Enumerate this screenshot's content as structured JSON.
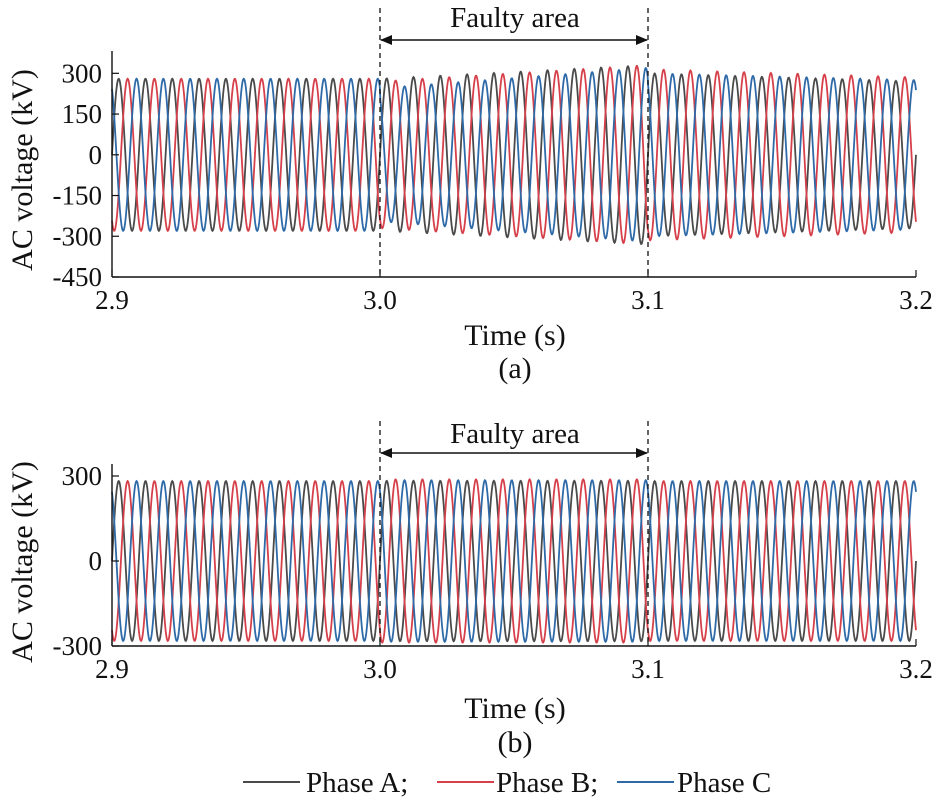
{
  "chart_data": [
    {
      "type": "line",
      "panel_label": "(a)",
      "xlabel": "Time (s)",
      "ylabel": "AC voltage (kV)",
      "xlim": [
        2.9,
        3.2
      ],
      "ylim": [
        -450,
        340
      ],
      "xticks": [
        2.9,
        3.0,
        3.1,
        3.2
      ],
      "xtick_labels": [
        "2.9",
        "3.0",
        "3.1",
        "3.2"
      ],
      "yticks": [
        300,
        150,
        0,
        -150,
        -300,
        -450
      ],
      "ytick_labels": [
        "300",
        "150",
        "0",
        "-150",
        "-300",
        "-450"
      ],
      "annotation": {
        "text": "Faulty area",
        "x_start": 3.0,
        "x_end": 3.1
      },
      "series": [
        {
          "name": "Phase A",
          "color": "#4a4a4a",
          "phase_deg": 0,
          "segments": [
            {
              "t0": 2.9,
              "t1": 3.0,
              "amplitude": 280
            },
            {
              "t0": 3.0,
              "t1": 3.1,
              "amplitude": [
                280,
                330
              ]
            },
            {
              "t0": 3.1,
              "t1": 3.2,
              "amplitude": [
                300,
                270
              ]
            }
          ]
        },
        {
          "name": "Phase B",
          "color": "#d6404a",
          "phase_deg": -120,
          "segments": [
            {
              "t0": 2.9,
              "t1": 3.0,
              "amplitude": 280
            },
            {
              "t0": 3.0,
              "t1": 3.1,
              "amplitude": [
                270,
                330
              ]
            },
            {
              "t0": 3.1,
              "t1": 3.2,
              "amplitude": [
                315,
                285
              ]
            }
          ]
        },
        {
          "name": "Phase C",
          "color": "#2f6aa8",
          "phase_deg": 120,
          "segments": [
            {
              "t0": 2.9,
              "t1": 3.0,
              "amplitude": 280
            },
            {
              "t0": 3.0,
              "t1": 3.1,
              "amplitude": [
                245,
                320
              ]
            },
            {
              "t0": 3.1,
              "t1": 3.2,
              "amplitude": [
                300,
                275
              ]
            }
          ]
        }
      ]
    },
    {
      "type": "line",
      "panel_label": "(b)",
      "xlabel": "Time (s)",
      "ylabel": "AC voltage (kV)",
      "xlim": [
        2.9,
        3.2
      ],
      "ylim": [
        -300,
        300
      ],
      "xticks": [
        2.9,
        3.0,
        3.1,
        3.2
      ],
      "xtick_labels": [
        "2.9",
        "3.0",
        "3.1",
        "3.2"
      ],
      "yticks": [
        300,
        0,
        -300
      ],
      "ytick_labels": [
        "300",
        "0",
        "-300"
      ],
      "annotation": {
        "text": "Faulty area",
        "x_start": 3.0,
        "x_end": 3.1
      },
      "series": [
        {
          "name": "Phase A",
          "color": "#4a4a4a",
          "phase_deg": 0,
          "segments": [
            {
              "t0": 2.9,
              "t1": 3.0,
              "amplitude": 282
            },
            {
              "t0": 3.0,
              "t1": 3.1,
              "amplitude": 283
            },
            {
              "t0": 3.1,
              "t1": 3.2,
              "amplitude": 282
            }
          ]
        },
        {
          "name": "Phase B",
          "color": "#d6404a",
          "phase_deg": -120,
          "segments": [
            {
              "t0": 2.9,
              "t1": 3.0,
              "amplitude": 282
            },
            {
              "t0": 3.0,
              "t1": 3.1,
              "amplitude": 288
            },
            {
              "t0": 3.1,
              "t1": 3.2,
              "amplitude": 282
            }
          ]
        },
        {
          "name": "Phase C",
          "color": "#2f6aa8",
          "phase_deg": 120,
          "segments": [
            {
              "t0": 2.9,
              "t1": 3.0,
              "amplitude": 282
            },
            {
              "t0": 3.0,
              "t1": 3.1,
              "amplitude": 285
            },
            {
              "t0": 3.1,
              "t1": 3.2,
              "amplitude": 282
            }
          ]
        }
      ]
    }
  ],
  "fundamental_frequency_hz": 100,
  "legend": {
    "placement": "bottom-center",
    "items": [
      {
        "label": "Phase A;",
        "color": "#4a4a4a"
      },
      {
        "label": "Phase B;",
        "color": "#d6404a"
      },
      {
        "label": "Phase C",
        "color": "#2f6aa8"
      }
    ]
  }
}
